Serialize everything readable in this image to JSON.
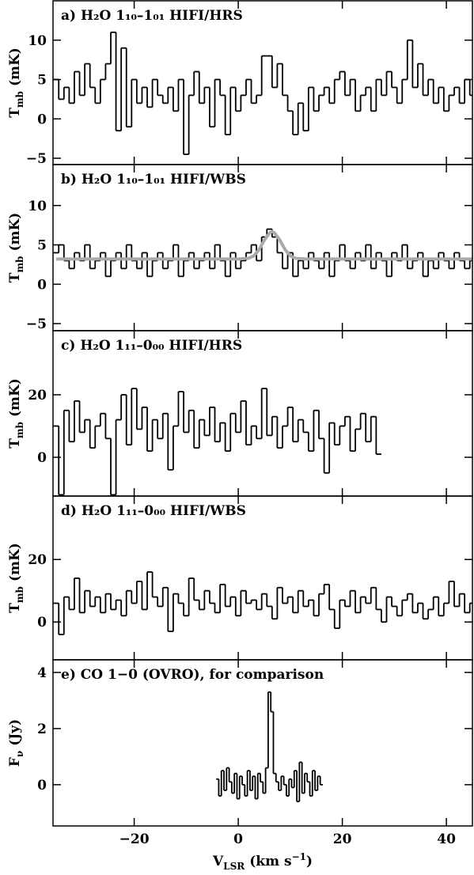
{
  "chart_data": [
    {
      "type": "step",
      "title": "a) H₂O 1₁₀–1₀₁ HIFI/HRS",
      "ylabel": [
        "T",
        "mb",
        "(mK)"
      ],
      "xlim": [
        -35.6,
        45
      ],
      "xticks": [
        {
          "value": -20,
          "label": "−20"
        },
        0,
        20,
        40
      ],
      "ylim": [
        -5.8,
        15
      ],
      "yticks": [
        {
          "value": -5,
          "label": "−5"
        },
        0,
        5,
        10
      ],
      "series": [
        {
          "color": "#000000",
          "x": [
            -35,
            -34,
            -33,
            -32,
            -31,
            -30,
            -29,
            -28,
            -27,
            -26,
            -25,
            -24,
            -23,
            -22,
            -21,
            -20,
            -19,
            -18,
            -17,
            -16,
            -15,
            -14,
            -13,
            -12,
            -11,
            -10,
            -9,
            -8,
            -7,
            -6,
            -5,
            -4,
            -3,
            -2,
            -1,
            0,
            1,
            2,
            3,
            4,
            5,
            6,
            7,
            8,
            9,
            10,
            11,
            12,
            13,
            14,
            15,
            16,
            17,
            18,
            19,
            20,
            21,
            22,
            23,
            24,
            25,
            26,
            27,
            28,
            29,
            30,
            31,
            32,
            33,
            34,
            35,
            36,
            37,
            38,
            39,
            40,
            41,
            42,
            43,
            44,
            45
          ],
          "values": [
            5,
            2.5,
            4,
            2,
            6,
            3,
            7,
            4,
            2,
            5,
            7,
            11,
            -1.5,
            9,
            -1,
            5,
            2,
            4,
            1.5,
            5,
            3,
            2,
            4,
            1,
            5,
            -4.5,
            3,
            6,
            2,
            4,
            -1,
            5,
            3,
            -2,
            4,
            1,
            3,
            5,
            2,
            3,
            8,
            8,
            4,
            7,
            3,
            1,
            -2,
            2,
            -1.5,
            4,
            1,
            3,
            4,
            2,
            5,
            6,
            3,
            5,
            1,
            3,
            4,
            1,
            5,
            3,
            6,
            4,
            2,
            5,
            10,
            4,
            7,
            3,
            5,
            2,
            4,
            1,
            3,
            4,
            2,
            5,
            3
          ]
        }
      ]
    },
    {
      "type": "step",
      "title": "b) H₂O 1₁₀–1₀₁ HIFI/WBS",
      "ylabel": [
        "T",
        "mb",
        "(mK)"
      ],
      "xlim": [
        -35.6,
        45
      ],
      "xticks": [
        {
          "value": -20,
          "label": "−20"
        },
        0,
        20,
        40
      ],
      "ylim": [
        -5.9,
        15.2
      ],
      "yticks": [
        {
          "value": -5,
          "label": "−5"
        },
        0,
        5,
        10
      ],
      "series": [
        {
          "color": "#000000",
          "x": [
            -35,
            -34,
            -33,
            -32,
            -31,
            -30,
            -29,
            -28,
            -27,
            -26,
            -25,
            -24,
            -23,
            -22,
            -21,
            -20,
            -19,
            -18,
            -17,
            -16,
            -15,
            -14,
            -13,
            -12,
            -11,
            -10,
            -9,
            -8,
            -7,
            -6,
            -5,
            -4,
            -3,
            -2,
            -1,
            0,
            1,
            2,
            3,
            4,
            5,
            6,
            7,
            8,
            9,
            10,
            11,
            12,
            13,
            14,
            15,
            16,
            17,
            18,
            19,
            20,
            21,
            22,
            23,
            24,
            25,
            26,
            27,
            28,
            29,
            30,
            31,
            32,
            33,
            34,
            35,
            36,
            37,
            38,
            39,
            40,
            41,
            42,
            43,
            44,
            45
          ],
          "values": [
            4,
            5,
            3,
            2,
            4,
            3,
            5,
            2,
            3,
            4,
            1,
            3,
            4,
            2,
            5,
            3,
            2,
            4,
            1,
            3,
            4,
            2,
            3,
            5,
            1,
            3,
            4,
            2,
            3,
            4,
            2,
            5,
            3,
            1,
            4,
            2,
            3,
            4,
            5,
            3,
            6,
            7,
            6,
            4,
            2,
            4,
            1,
            3,
            2,
            4,
            3,
            2,
            4,
            1,
            3,
            5,
            3,
            2,
            4,
            3,
            5,
            2,
            4,
            3,
            1,
            4,
            3,
            5,
            2,
            3,
            4,
            1,
            3,
            2,
            4,
            3,
            2,
            4,
            3,
            2,
            3
          ]
        },
        {
          "type": "line",
          "color": "#aaaaaa",
          "x": [
            -35,
            -5,
            0,
            2,
            3,
            4,
            5,
            6,
            6.5,
            7,
            8,
            9,
            10,
            11,
            13,
            20,
            45
          ],
          "values": [
            3.2,
            3.2,
            3.2,
            3.3,
            3.6,
            4.4,
            5.6,
            6.5,
            6.7,
            6.5,
            5.6,
            4.4,
            3.6,
            3.3,
            3.2,
            3.2,
            3.2
          ]
        }
      ]
    },
    {
      "type": "step",
      "title": "c) H₂O 1₁₁–0₀₀ HIFI/HRS",
      "ylabel": [
        "T",
        "mb",
        "(mK)"
      ],
      "xlim": [
        -35.6,
        45
      ],
      "xticks": [
        {
          "value": -20,
          "label": "−20"
        },
        0,
        20,
        40
      ],
      "ylim": [
        -12.4,
        40.5
      ],
      "yticks": [
        0,
        20
      ],
      "series": [
        {
          "color": "#000000",
          "x": [
            -35,
            -34,
            -33,
            -32,
            -31,
            -30,
            -29,
            -28,
            -27,
            -26,
            -25,
            -24,
            -23,
            -22,
            -21,
            -20,
            -19,
            -18,
            -17,
            -16,
            -15,
            -14,
            -13,
            -12,
            -11,
            -10,
            -9,
            -8,
            -7,
            -6,
            -5,
            -4,
            -3,
            -2,
            -1,
            0,
            1,
            2,
            3,
            4,
            5,
            6,
            7,
            8,
            9,
            10,
            11,
            12,
            13,
            14,
            15,
            16,
            17,
            18,
            19,
            20,
            21,
            22,
            23,
            24,
            25,
            26,
            27
          ],
          "values": [
            10,
            -12,
            15,
            5,
            18,
            8,
            12,
            3,
            10,
            14,
            6,
            -12,
            12,
            20,
            4,
            22,
            9,
            16,
            2,
            12,
            6,
            14,
            -4,
            10,
            21,
            8,
            15,
            3,
            12,
            7,
            16,
            5,
            11,
            2,
            14,
            8,
            18,
            4,
            10,
            6,
            22,
            7,
            13,
            3,
            10,
            16,
            5,
            12,
            8,
            2,
            15,
            6,
            -5,
            11,
            4,
            10,
            13,
            2,
            9,
            14,
            5,
            13,
            1
          ]
        }
      ]
    },
    {
      "type": "step",
      "title": "d) H₂O 1₁₁–0₀₀ HIFI/WBS",
      "ylabel": [
        "T",
        "mb",
        "(mK)"
      ],
      "xlim": [
        -35.6,
        45
      ],
      "xticks": [
        {
          "value": -20,
          "label": "−20"
        },
        0,
        20,
        40
      ],
      "ylim": [
        -12.1,
        40.3
      ],
      "yticks": [
        0,
        20
      ],
      "series": [
        {
          "color": "#000000",
          "x": [
            -35,
            -34,
            -33,
            -32,
            -31,
            -30,
            -29,
            -28,
            -27,
            -26,
            -25,
            -24,
            -23,
            -22,
            -21,
            -20,
            -19,
            -18,
            -17,
            -16,
            -15,
            -14,
            -13,
            -12,
            -11,
            -10,
            -9,
            -8,
            -7,
            -6,
            -5,
            -4,
            -3,
            -2,
            -1,
            0,
            1,
            2,
            3,
            4,
            5,
            6,
            7,
            8,
            9,
            10,
            11,
            12,
            13,
            14,
            15,
            16,
            17,
            18,
            19,
            20,
            21,
            22,
            23,
            24,
            25,
            26,
            27,
            28,
            29,
            30,
            31,
            32,
            33,
            34,
            35,
            36,
            37,
            38,
            39,
            40,
            41,
            42,
            43,
            44,
            45
          ],
          "values": [
            6,
            -4,
            8,
            4,
            14,
            3,
            10,
            5,
            8,
            3,
            9,
            4,
            7,
            2,
            10,
            6,
            13,
            4,
            16,
            8,
            5,
            11,
            -3,
            9,
            6,
            2,
            14,
            7,
            4,
            10,
            6,
            3,
            12,
            5,
            8,
            2,
            10,
            6,
            7,
            4,
            9,
            5,
            1,
            11,
            6,
            8,
            3,
            10,
            5,
            7,
            2,
            9,
            12,
            4,
            -2,
            7,
            5,
            10,
            3,
            8,
            6,
            11,
            4,
            0,
            8,
            5,
            2,
            7,
            9,
            3,
            6,
            1,
            4,
            8,
            2,
            6,
            13,
            5,
            9,
            3,
            6
          ]
        }
      ]
    },
    {
      "type": "step",
      "title": "e) CO 1−0 (OVRO), for comparison",
      "ylabel": [
        "F",
        "ν",
        "(Jy)"
      ],
      "xlabel": [
        "V",
        "LSR",
        "(km s",
        "−1",
        ")"
      ],
      "xlim": [
        -35.6,
        45
      ],
      "xticks": [
        {
          "value": -20,
          "label": "−20"
        },
        0,
        20,
        40
      ],
      "ylim": [
        -1.47,
        4.45
      ],
      "yticks": [
        0,
        2,
        4
      ],
      "series": [
        {
          "color": "#000000",
          "x": [
            -4,
            -3.5,
            -3,
            -2.5,
            -2,
            -1.5,
            -1,
            -0.5,
            0,
            0.5,
            1,
            1.5,
            2,
            2.5,
            3,
            3.5,
            4,
            4.5,
            5,
            5.5,
            6,
            6.5,
            7,
            7.5,
            8,
            8.5,
            9,
            9.5,
            10,
            10.5,
            11,
            11.5,
            12,
            12.5,
            13,
            13.5,
            14,
            14.5,
            15,
            15.5,
            16
          ],
          "values": [
            0.2,
            -0.4,
            0.5,
            -0.2,
            0.6,
            0.1,
            -0.3,
            0.4,
            -0.5,
            0.3,
            0,
            -0.4,
            0.5,
            -0.2,
            0.3,
            -0.5,
            0.4,
            0.1,
            -0.3,
            0.6,
            3.3,
            2.6,
            0.4,
            0.1,
            -0.2,
            0.3,
            0,
            -0.4,
            0.2,
            -0.1,
            0.5,
            -0.6,
            0.8,
            -0.3,
            0.4,
            0.1,
            -0.4,
            0.5,
            -0.2,
            0.3,
            0
          ]
        }
      ]
    }
  ]
}
